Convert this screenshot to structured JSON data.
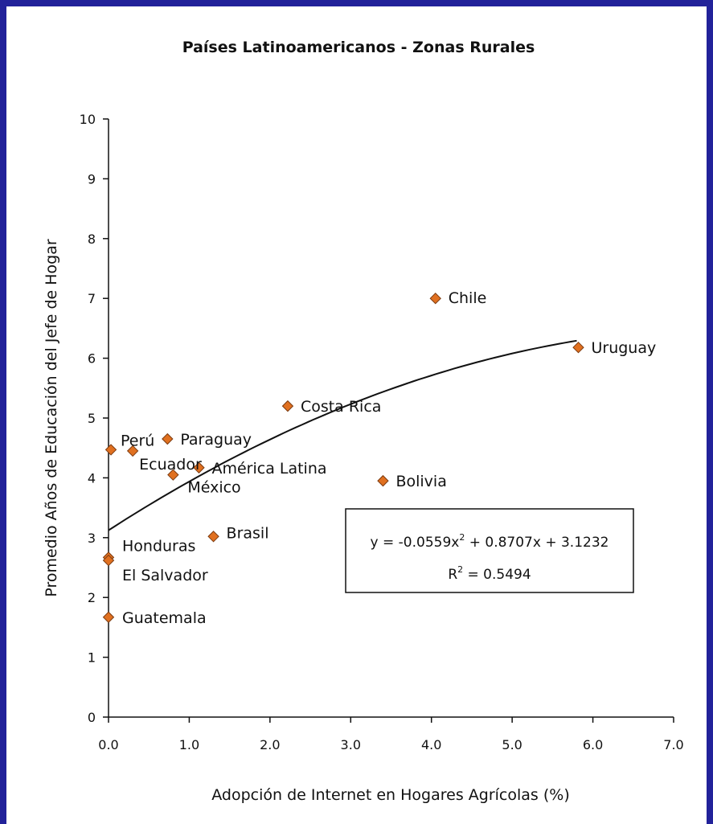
{
  "chart_data": {
    "type": "scatter",
    "title": "Países Latinoamericanos - Zonas Rurales",
    "xlabel": "Adopción de Internet en Hogares Agrícolas (%)",
    "ylabel": "Promedio Años de Educación del Jefe de Hogar",
    "xlim": [
      0,
      7
    ],
    "ylim": [
      0,
      10
    ],
    "x_ticks": [
      "0.0",
      "1.0",
      "2.0",
      "3.0",
      "4.0",
      "5.0",
      "6.0",
      "7.0"
    ],
    "y_ticks": [
      "0",
      "1",
      "2",
      "3",
      "4",
      "5",
      "6",
      "7",
      "8",
      "9",
      "10"
    ],
    "grid": false,
    "marker_color": "#e07020",
    "points": [
      {
        "label": "Chile",
        "x": 4.05,
        "y": 7.0
      },
      {
        "label": "Uruguay",
        "x": 5.82,
        "y": 6.18
      },
      {
        "label": "Costa Rica",
        "x": 2.22,
        "y": 5.2
      },
      {
        "label": "Perú",
        "x": 0.03,
        "y": 4.47
      },
      {
        "label": "Paraguay",
        "x": 0.73,
        "y": 4.65
      },
      {
        "label": "Ecuador",
        "x": 0.3,
        "y": 4.45
      },
      {
        "label": "América Latina",
        "x": 1.12,
        "y": 4.17
      },
      {
        "label": "México",
        "x": 0.8,
        "y": 4.05
      },
      {
        "label": "Bolivia",
        "x": 3.4,
        "y": 3.95
      },
      {
        "label": "Brasil",
        "x": 1.3,
        "y": 3.02
      },
      {
        "label": "Honduras",
        "x": 0.0,
        "y": 2.67
      },
      {
        "label": "El Salvador",
        "x": 0.0,
        "y": 2.62
      },
      {
        "label": "Guatemala",
        "x": 0.0,
        "y": 1.67
      }
    ],
    "trendline": {
      "type": "polynomial",
      "coefficients": [
        -0.0559,
        0.8707,
        3.1232
      ],
      "x_range": [
        0,
        5.8
      ],
      "equation": "y = -0.0559x",
      "equation_sup": "2",
      "equation_rest": " + 0.8707x + 3.1232",
      "r2_prefix": "R",
      "r2_sup": "2",
      "r2_rest": " = 0.5494"
    }
  }
}
